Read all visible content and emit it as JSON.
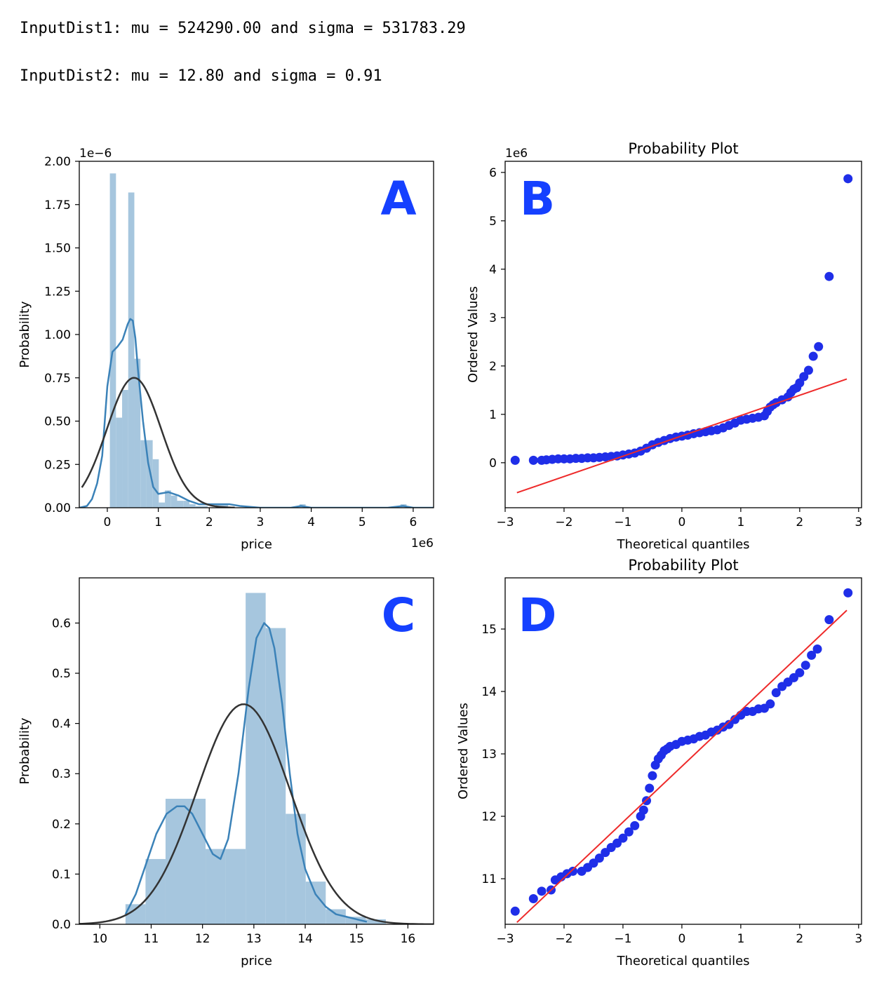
{
  "header": {
    "line1": "InputDist1: mu = 524290.00 and sigma = 531783.29",
    "line2": "InputDist2: mu = 12.80 and sigma = 0.91"
  },
  "colors": {
    "hist_fill": "#a6c6de",
    "kde_line": "#3b82b8",
    "normal_fit": "#333333",
    "qq_points": "#1f2ee8",
    "qq_line": "#ee2a2a",
    "panel_letter": "#1540ff"
  },
  "chart_data": [
    {
      "id": "A",
      "panel_label": "A",
      "type": "bar",
      "title": "",
      "xlabel": "price",
      "ylabel": "Probability",
      "x_offset_text": "1e6",
      "y_offset_text": "1e−6",
      "xlim": [
        -0.55,
        6.4
      ],
      "ylim": [
        0,
        2.0
      ],
      "xticks": [
        0,
        1,
        2,
        3,
        4,
        5,
        6
      ],
      "xtick_labels": [
        "0",
        "1",
        "2",
        "3",
        "4",
        "5",
        "6"
      ],
      "yticks": [
        0.0,
        0.25,
        0.5,
        0.75,
        1.0,
        1.25,
        1.5,
        1.75,
        2.0
      ],
      "ytick_labels": [
        "0.00",
        "0.25",
        "0.50",
        "0.75",
        "1.00",
        "1.25",
        "1.50",
        "1.75",
        "2.00"
      ],
      "bins": [
        {
          "x0": 0.05,
          "x1": 0.17,
          "value": 1.93
        },
        {
          "x0": 0.17,
          "x1": 0.29,
          "value": 0.52
        },
        {
          "x0": 0.29,
          "x1": 0.41,
          "value": 0.68
        },
        {
          "x0": 0.41,
          "x1": 0.53,
          "value": 1.82
        },
        {
          "x0": 0.53,
          "x1": 0.65,
          "value": 0.86
        },
        {
          "x0": 0.65,
          "x1": 0.77,
          "value": 0.39
        },
        {
          "x0": 0.77,
          "x1": 0.89,
          "value": 0.39
        },
        {
          "x0": 0.89,
          "x1": 1.01,
          "value": 0.28
        },
        {
          "x0": 1.01,
          "x1": 1.13,
          "value": 0.03
        },
        {
          "x0": 1.13,
          "x1": 1.25,
          "value": 0.1
        },
        {
          "x0": 1.25,
          "x1": 1.37,
          "value": 0.07
        },
        {
          "x0": 1.37,
          "x1": 1.49,
          "value": 0.04
        },
        {
          "x0": 1.49,
          "x1": 1.61,
          "value": 0.04
        },
        {
          "x0": 1.61,
          "x1": 1.73,
          "value": 0.02
        },
        {
          "x0": 1.73,
          "x1": 1.85,
          "value": 0.01
        },
        {
          "x0": 1.85,
          "x1": 1.97,
          "value": 0.01
        },
        {
          "x0": 2.13,
          "x1": 2.25,
          "value": 0.02
        },
        {
          "x0": 2.25,
          "x1": 2.37,
          "value": 0.02
        },
        {
          "x0": 3.77,
          "x1": 3.89,
          "value": 0.02
        },
        {
          "x0": 5.75,
          "x1": 5.87,
          "value": 0.02
        }
      ],
      "kde": {
        "x": [
          -0.55,
          -0.4,
          -0.3,
          -0.2,
          -0.1,
          0.0,
          0.1,
          0.2,
          0.3,
          0.4,
          0.45,
          0.5,
          0.55,
          0.6,
          0.7,
          0.8,
          0.9,
          1.0,
          1.2,
          1.4,
          1.6,
          1.8,
          2.0,
          2.2,
          2.4,
          2.6,
          3.0,
          3.6,
          3.8,
          4.0,
          4.5,
          5.0,
          5.5,
          5.8,
          6.0,
          6.4
        ],
        "y": [
          0.0,
          0.01,
          0.05,
          0.14,
          0.3,
          0.7,
          0.9,
          0.93,
          0.97,
          1.06,
          1.09,
          1.08,
          0.98,
          0.8,
          0.5,
          0.26,
          0.12,
          0.08,
          0.09,
          0.07,
          0.04,
          0.02,
          0.02,
          0.02,
          0.02,
          0.01,
          0.0,
          0.0,
          0.01,
          0.0,
          0.0,
          0.0,
          0.0,
          0.01,
          0.0,
          0.0
        ]
      },
      "normal_fit": {
        "mu": 0.52429,
        "sigma": 0.53178,
        "scale": 1.0,
        "x_range": [
          -0.5,
          2.5
        ]
      }
    },
    {
      "id": "B",
      "panel_label": "B",
      "type": "scatter",
      "title": "Probability Plot",
      "xlabel": "Theoretical quantiles",
      "ylabel": "Ordered Values",
      "y_offset_text": "1e6",
      "xlim": [
        -3.0,
        3.05
      ],
      "ylim": [
        -0.93,
        6.23
      ],
      "xticks": [
        -3,
        -2,
        -1,
        0,
        1,
        2,
        3
      ],
      "xtick_labels": [
        "−3",
        "−2",
        "−1",
        "0",
        "1",
        "2",
        "3"
      ],
      "yticks": [
        0,
        1,
        2,
        3,
        4,
        5,
        6
      ],
      "ytick_labels": [
        "0",
        "1",
        "2",
        "3",
        "4",
        "5",
        "6"
      ],
      "points": {
        "x": [
          -2.83,
          -2.52,
          -2.38,
          -2.3,
          -2.2,
          -2.1,
          -2.0,
          -1.9,
          -1.8,
          -1.7,
          -1.6,
          -1.5,
          -1.4,
          -1.3,
          -1.2,
          -1.1,
          -1.0,
          -0.9,
          -0.8,
          -0.7,
          -0.6,
          -0.5,
          -0.4,
          -0.3,
          -0.2,
          -0.1,
          0.0,
          0.1,
          0.2,
          0.3,
          0.4,
          0.5,
          0.6,
          0.7,
          0.8,
          0.9,
          1.0,
          1.1,
          1.2,
          1.3,
          1.4,
          1.45,
          1.5,
          1.55,
          1.6,
          1.7,
          1.8,
          1.85,
          1.9,
          1.95,
          2.0,
          2.07,
          2.15,
          2.23,
          2.32,
          2.5,
          2.82
        ],
        "y": [
          0.05,
          0.05,
          0.05,
          0.06,
          0.07,
          0.08,
          0.08,
          0.08,
          0.09,
          0.09,
          0.1,
          0.1,
          0.11,
          0.12,
          0.13,
          0.14,
          0.16,
          0.18,
          0.2,
          0.24,
          0.3,
          0.37,
          0.42,
          0.46,
          0.5,
          0.53,
          0.55,
          0.57,
          0.6,
          0.62,
          0.64,
          0.66,
          0.68,
          0.72,
          0.77,
          0.82,
          0.88,
          0.9,
          0.92,
          0.94,
          0.97,
          1.06,
          1.15,
          1.2,
          1.24,
          1.3,
          1.36,
          1.45,
          1.52,
          1.55,
          1.65,
          1.78,
          1.91,
          2.2,
          2.4,
          3.85,
          5.87
        ]
      },
      "fit_line": {
        "x": [
          -2.8,
          2.8
        ],
        "y": [
          -0.62,
          1.73
        ]
      }
    },
    {
      "id": "C",
      "panel_label": "C",
      "type": "bar",
      "title": "",
      "xlabel": "price",
      "ylabel": "Probability",
      "xlim": [
        9.6,
        16.5
      ],
      "ylim": [
        0,
        0.69
      ],
      "xticks": [
        10,
        11,
        12,
        13,
        14,
        15,
        16
      ],
      "xtick_labels": [
        "10",
        "11",
        "12",
        "13",
        "14",
        "15",
        "16"
      ],
      "yticks": [
        0.0,
        0.1,
        0.2,
        0.3,
        0.4,
        0.5,
        0.6
      ],
      "ytick_labels": [
        "0.0",
        "0.1",
        "0.2",
        "0.3",
        "0.4",
        "0.5",
        "0.6"
      ],
      "bins": [
        {
          "x0": 10.5,
          "x1": 10.89,
          "value": 0.04
        },
        {
          "x0": 10.89,
          "x1": 11.28,
          "value": 0.13
        },
        {
          "x0": 11.28,
          "x1": 11.67,
          "value": 0.25
        },
        {
          "x0": 11.67,
          "x1": 12.06,
          "value": 0.25
        },
        {
          "x0": 12.06,
          "x1": 12.45,
          "value": 0.15
        },
        {
          "x0": 12.45,
          "x1": 12.84,
          "value": 0.15
        },
        {
          "x0": 12.84,
          "x1": 13.23,
          "value": 0.66
        },
        {
          "x0": 13.23,
          "x1": 13.62,
          "value": 0.59
        },
        {
          "x0": 13.62,
          "x1": 14.01,
          "value": 0.22
        },
        {
          "x0": 14.01,
          "x1": 14.4,
          "value": 0.085
        },
        {
          "x0": 14.4,
          "x1": 14.79,
          "value": 0.03
        },
        {
          "x0": 14.79,
          "x1": 15.18,
          "value": 0.015
        },
        {
          "x0": 15.18,
          "x1": 15.57,
          "value": 0.01
        }
      ],
      "kde": {
        "x": [
          10.5,
          10.7,
          10.9,
          11.1,
          11.3,
          11.5,
          11.65,
          11.8,
          12.0,
          12.2,
          12.35,
          12.5,
          12.7,
          12.9,
          13.05,
          13.2,
          13.3,
          13.4,
          13.55,
          13.7,
          13.85,
          14.0,
          14.2,
          14.4,
          14.6,
          14.8,
          15.0,
          15.2
        ],
        "y": [
          0.02,
          0.06,
          0.12,
          0.18,
          0.22,
          0.235,
          0.235,
          0.22,
          0.18,
          0.14,
          0.13,
          0.17,
          0.3,
          0.47,
          0.57,
          0.6,
          0.59,
          0.55,
          0.44,
          0.3,
          0.18,
          0.11,
          0.06,
          0.035,
          0.02,
          0.015,
          0.01,
          0.005
        ]
      },
      "normal_fit": {
        "mu": 12.8,
        "sigma": 0.91,
        "scale": 1.0,
        "x_range": [
          9.6,
          16.5
        ]
      }
    },
    {
      "id": "D",
      "panel_label": "D",
      "type": "scatter",
      "title": "Probability Plot",
      "xlabel": "Theoretical quantiles",
      "ylabel": "Ordered Values",
      "xlim": [
        -3.0,
        3.05
      ],
      "ylim": [
        10.27,
        15.82
      ],
      "xticks": [
        -3,
        -2,
        -1,
        0,
        1,
        2,
        3
      ],
      "xtick_labels": [
        "−3",
        "−2",
        "−1",
        "0",
        "1",
        "2",
        "3"
      ],
      "yticks": [
        11,
        12,
        13,
        14,
        15
      ],
      "ytick_labels": [
        "11",
        "12",
        "13",
        "14",
        "15"
      ],
      "points": {
        "x": [
          -2.83,
          -2.52,
          -2.38,
          -2.22,
          -2.15,
          -2.05,
          -1.95,
          -1.85,
          -1.7,
          -1.6,
          -1.5,
          -1.4,
          -1.3,
          -1.2,
          -1.1,
          -1.0,
          -0.9,
          -0.8,
          -0.7,
          -0.65,
          -0.6,
          -0.55,
          -0.5,
          -0.45,
          -0.4,
          -0.35,
          -0.3,
          -0.25,
          -0.2,
          -0.1,
          0.0,
          0.1,
          0.2,
          0.3,
          0.4,
          0.5,
          0.6,
          0.7,
          0.8,
          0.9,
          1.0,
          1.1,
          1.2,
          1.3,
          1.4,
          1.5,
          1.6,
          1.7,
          1.8,
          1.9,
          2.0,
          2.1,
          2.2,
          2.3,
          2.5,
          2.82
        ],
        "y": [
          10.48,
          10.68,
          10.8,
          10.82,
          10.98,
          11.03,
          11.08,
          11.12,
          11.12,
          11.18,
          11.25,
          11.33,
          11.42,
          11.5,
          11.57,
          11.65,
          11.75,
          11.85,
          12.0,
          12.1,
          12.25,
          12.45,
          12.65,
          12.82,
          12.92,
          12.98,
          13.05,
          13.08,
          13.12,
          13.15,
          13.2,
          13.22,
          13.24,
          13.28,
          13.3,
          13.35,
          13.38,
          13.43,
          13.47,
          13.55,
          13.62,
          13.68,
          13.68,
          13.72,
          13.73,
          13.8,
          13.98,
          14.08,
          14.15,
          14.22,
          14.3,
          14.42,
          14.58,
          14.68,
          15.15,
          15.58
        ]
      },
      "fit_line": {
        "x": [
          -2.8,
          2.8
        ],
        "y": [
          10.3,
          15.3
        ]
      }
    }
  ]
}
